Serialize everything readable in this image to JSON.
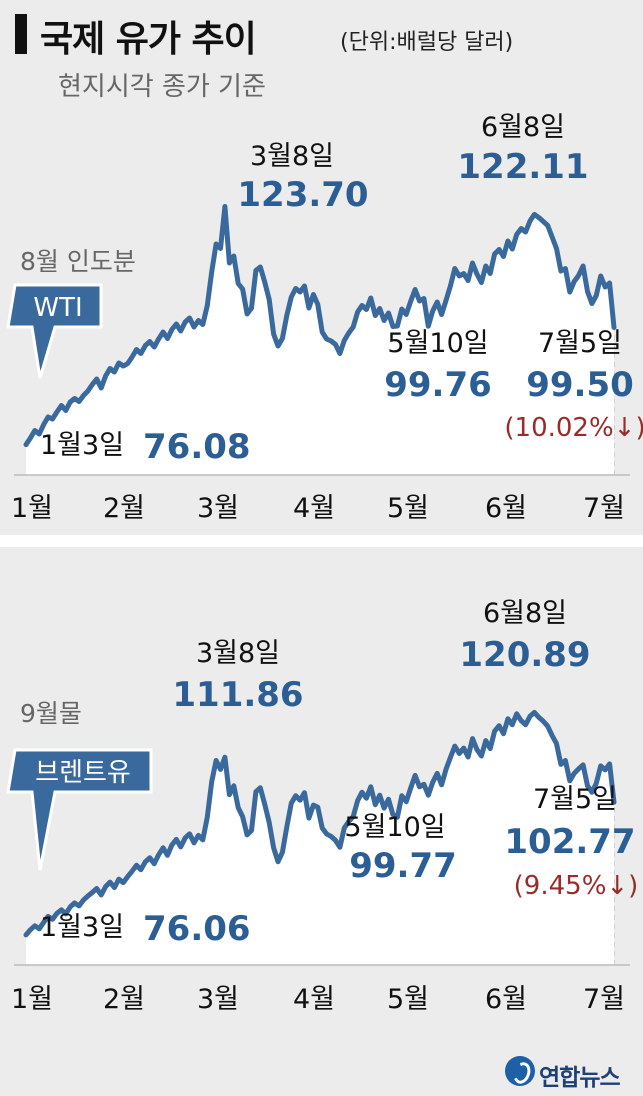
{
  "header": {
    "title": "국제 유가 추이",
    "unit": "(단위:배럴당 달러)",
    "subtitle": "현지시각 종가 기준"
  },
  "colors": {
    "line": "#3a6a9d",
    "accent": "#2c5e96",
    "down": "#9a2b2b",
    "callout_bg": "#3a6a9d"
  },
  "chart_data": [
    {
      "type": "area",
      "name": "WTI",
      "series_label": "WTI",
      "contract_note": "8월 인도분",
      "x_tick_labels": [
        "1월",
        "2월",
        "3월",
        "4월",
        "5월",
        "6월",
        "7월"
      ],
      "ylim": [
        70,
        128
      ],
      "values": [
        76.08,
        77.4,
        78.9,
        78.2,
        80.1,
        81.6,
        81.2,
        82.6,
        83.9,
        82.9,
        84.6,
        85.3,
        84.7,
        85.9,
        86.8,
        88.1,
        89.2,
        87.4,
        89.8,
        91.3,
        90.6,
        92.4,
        91.8,
        92.3,
        93.6,
        95.1,
        94.3,
        95.9,
        96.7,
        95.6,
        97.2,
        98.6,
        97.3,
        99.1,
        100.2,
        98.8,
        100.6,
        101.4,
        99.6,
        100.9,
        100.1,
        103.9,
        110.6,
        116.2,
        115.3,
        123.7,
        112.4,
        113.8,
        108.3,
        107.2,
        102.2,
        103.4,
        110.9,
        111.6,
        108.6,
        105.1,
        98.2,
        95.8,
        97.3,
        101.9,
        105.6,
        107.3,
        106.6,
        107.8,
        103.4,
        106.1,
        104.1,
        98.6,
        97.2,
        96.8,
        96.1,
        94.3,
        96.9,
        98.4,
        99.6,
        102.6,
        103.9,
        103.1,
        105.4,
        101.9,
        103.3,
        100.9,
        102.4,
        99.7,
        99.8,
        103.2,
        102.1,
        104.7,
        107.1,
        104.8,
        105.3,
        99.76,
        102.8,
        104.6,
        102.1,
        104.9,
        107.8,
        111.3,
        109.8,
        110.3,
        108.9,
        112.4,
        110.2,
        108.5,
        111.8,
        110.3,
        114.2,
        115.1,
        113.7,
        116.8,
        115.2,
        118.1,
        119.3,
        118.6,
        120.8,
        122.11,
        121.5,
        120.7,
        119.9,
        117.6,
        115.3,
        110.8,
        111.3,
        106.6,
        108.7,
        109.9,
        111.8,
        106.7,
        104.3,
        105.9,
        109.8,
        107.6,
        108.4,
        99.5
      ],
      "annotations": [
        {
          "label": "1월3일",
          "value": "76.08"
        },
        {
          "label": "3월8일",
          "value": "123.70"
        },
        {
          "label": "5월10일",
          "value": "99.76"
        },
        {
          "label": "6월8일",
          "value": "122.11"
        },
        {
          "label": "7월5일",
          "value": "99.50",
          "change": "(10.02%↓)"
        }
      ]
    },
    {
      "type": "area",
      "name": "브렌트유",
      "series_label": "브렌트유",
      "contract_note": "9월물",
      "x_tick_labels": [
        "1월",
        "2월",
        "3월",
        "4월",
        "5월",
        "6월",
        "7월"
      ],
      "ylim": [
        70,
        126
      ],
      "values": [
        76.06,
        77.1,
        77.9,
        77.3,
        78.6,
        79.8,
        79.2,
        80.4,
        81.1,
        80.3,
        81.7,
        82.5,
        81.9,
        83.1,
        83.9,
        84.6,
        85.4,
        84.1,
        85.8,
        86.7,
        85.6,
        87.3,
        86.6,
        87.8,
        88.9,
        90.1,
        89.2,
        90.8,
        91.6,
        90.4,
        92.2,
        93.6,
        92.1,
        94.2,
        95.3,
        93.8,
        95.6,
        96.4,
        94.6,
        96.1,
        95.2,
        99.8,
        106.9,
        111.2,
        109.4,
        111.86,
        104.3,
        106.1,
        101.7,
        99.9,
        96.2,
        97.1,
        104.9,
        105.7,
        102.4,
        98.7,
        93.6,
        90.8,
        92.7,
        97.8,
        102.6,
        104.1,
        103.2,
        104.7,
        99.6,
        102.2,
        101.8,
        97.6,
        96.4,
        95.9,
        95.1,
        93.7,
        97.6,
        98.9,
        99.9,
        103.1,
        104.8,
        103.6,
        105.9,
        102.3,
        104.2,
        101.6,
        103.4,
        100.3,
        99.77,
        104.1,
        102.9,
        105.6,
        108.2,
        105.9,
        106.4,
        104.2,
        106.8,
        108.6,
        106.3,
        109.4,
        111.8,
        114.1,
        112.6,
        113.7,
        111.9,
        115.6,
        113.4,
        112.1,
        115.2,
        113.6,
        117.1,
        118.2,
        116.6,
        119.6,
        118.4,
        120.6,
        119.2,
        118.4,
        120.1,
        120.89,
        119.9,
        119.1,
        118.1,
        116.2,
        114.6,
        110.4,
        111.2,
        107.1,
        108.6,
        109.5,
        110.3,
        106.1,
        104.8,
        106.6,
        110.1,
        109.3,
        110.5,
        102.77
      ],
      "annotations": [
        {
          "label": "1월3일",
          "value": "76.06"
        },
        {
          "label": "3월8일",
          "value": "111.86"
        },
        {
          "label": "5월10일",
          "value": "99.77"
        },
        {
          "label": "6월8일",
          "value": "120.89"
        },
        {
          "label": "7월5일",
          "value": "102.77",
          "change": "(9.45%↓)"
        }
      ]
    }
  ],
  "footer": {
    "logo_text": "연합뉴스"
  }
}
